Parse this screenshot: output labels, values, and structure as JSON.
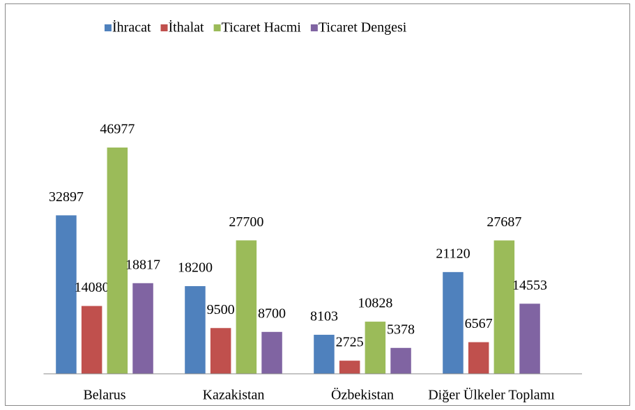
{
  "chart_data": {
    "type": "bar",
    "categories": [
      "Belarus",
      "Kazakistan",
      "Özbekistan",
      "Diğer Ülkeler Toplamı"
    ],
    "series": [
      {
        "name": "İhracat",
        "color": "#4f81bd",
        "values": [
          32897,
          18200,
          8103,
          21120
        ]
      },
      {
        "name": "İthalat",
        "color": "#c0504d",
        "values": [
          14080,
          9500,
          2725,
          6567
        ]
      },
      {
        "name": "Ticaret Hacmi",
        "color": "#9bbb59",
        "values": [
          46977,
          27700,
          10828,
          27687
        ]
      },
      {
        "name": "Ticaret Dengesi",
        "color": "#8064a2",
        "values": [
          18817,
          8700,
          5378,
          14553
        ]
      }
    ],
    "ylim": [
      0,
      50000
    ],
    "legend": "top",
    "data_labels": true
  }
}
